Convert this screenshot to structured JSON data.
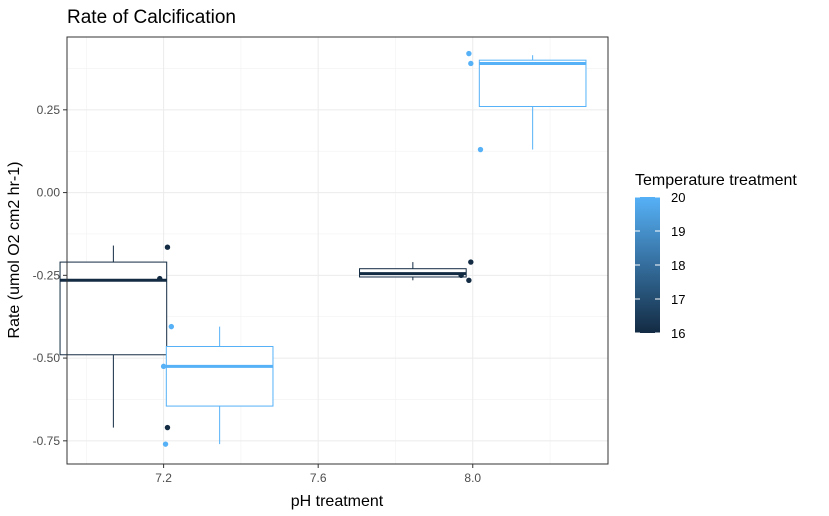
{
  "chart_data": {
    "type": "boxplot",
    "title": "Rate of Calcification",
    "xlabel": "pH treatment",
    "ylabel": "Rate (umol O2 cm2 hr-1)",
    "xlim": [
      6.95,
      8.35
    ],
    "ylim": [
      -0.82,
      0.47
    ],
    "x_ticks": [
      7.2,
      7.6,
      8.0
    ],
    "x_tick_labels": [
      "7.2",
      "7.6",
      "8.0"
    ],
    "y_ticks": [
      -0.75,
      -0.5,
      -0.25,
      0.0,
      0.25
    ],
    "y_tick_labels": [
      "-0.75",
      "-0.50",
      "-0.25",
      "0.00",
      "0.25"
    ],
    "grid": true,
    "legend": {
      "title": "Temperature treatment",
      "position": "right",
      "min": 16,
      "max": 20,
      "breaks": [
        16,
        17,
        18,
        19,
        20
      ],
      "break_labels": [
        "16",
        "17",
        "18",
        "19",
        "20"
      ],
      "low_color": "#132B43",
      "high_color": "#56B1F7"
    },
    "boxes": [
      {
        "ph": 7.2,
        "temperature": 16,
        "center": 7.07,
        "halfwidth": 0.138,
        "ymin": -0.71,
        "q1": -0.49,
        "median": -0.265,
        "q3": -0.21,
        "ymax": -0.16
      },
      {
        "ph": 7.2,
        "temperature": 20,
        "center": 7.345,
        "halfwidth": 0.138,
        "ymin": -0.76,
        "q1": -0.645,
        "median": -0.525,
        "q3": -0.465,
        "ymax": -0.405
      },
      {
        "ph": 8.0,
        "temperature": 16,
        "center": 7.845,
        "halfwidth": 0.138,
        "ymin": -0.265,
        "q1": -0.255,
        "median": -0.245,
        "q3": -0.23,
        "ymax": -0.21
      },
      {
        "ph": 8.0,
        "temperature": 20,
        "center": 8.155,
        "halfwidth": 0.138,
        "ymin": 0.13,
        "q1": 0.26,
        "median": 0.39,
        "q3": 0.4,
        "ymax": 0.415
      }
    ],
    "points": [
      {
        "x": 7.19,
        "y": -0.26,
        "temperature": 16
      },
      {
        "x": 7.21,
        "y": -0.165,
        "temperature": 16
      },
      {
        "x": 7.21,
        "y": -0.71,
        "temperature": 16
      },
      {
        "x": 7.22,
        "y": -0.405,
        "temperature": 20
      },
      {
        "x": 7.2,
        "y": -0.525,
        "temperature": 20
      },
      {
        "x": 7.205,
        "y": -0.76,
        "temperature": 20
      },
      {
        "x": 7.97,
        "y": -0.25,
        "temperature": 16
      },
      {
        "x": 7.99,
        "y": -0.265,
        "temperature": 16
      },
      {
        "x": 7.995,
        "y": -0.21,
        "temperature": 16
      },
      {
        "x": 7.99,
        "y": 0.42,
        "temperature": 20
      },
      {
        "x": 7.995,
        "y": 0.39,
        "temperature": 20
      },
      {
        "x": 8.02,
        "y": 0.13,
        "temperature": 20
      }
    ]
  }
}
